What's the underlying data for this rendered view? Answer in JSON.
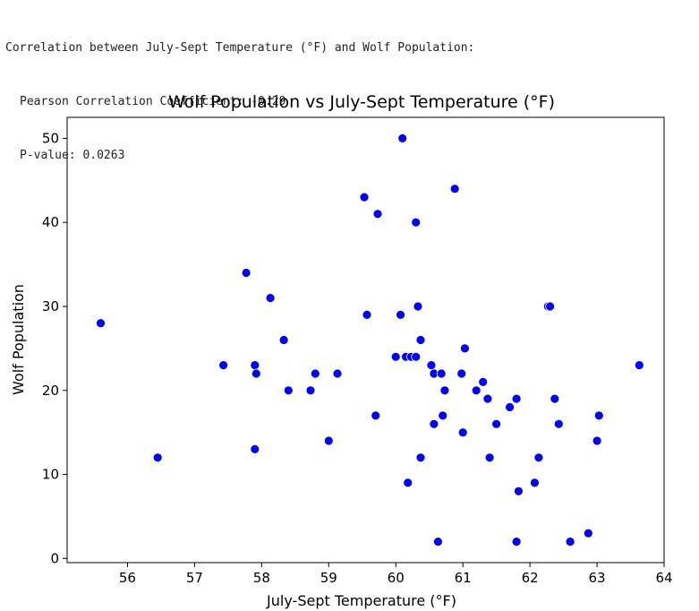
{
  "output": {
    "heading": "Correlation between July-Sept Temperature (°F) and Wolf Population:",
    "pearson": "Pearson Correlation Coefficient: -0.29",
    "pvalue": "P-value: 0.0263"
  },
  "colors": {
    "point": "#0000ff",
    "point_edge": "#ffffff",
    "axis": "#000000"
  },
  "chart_data": {
    "type": "scatter",
    "title": "Wolf Population vs July-Sept Temperature (°F)",
    "xlabel": "July-Sept Temperature (°F)",
    "ylabel": "Wolf Population",
    "xlim": [
      55.1,
      64.0
    ],
    "ylim": [
      -0.5,
      52.5
    ],
    "xticks": [
      56,
      57,
      58,
      59,
      60,
      61,
      62,
      63,
      64
    ],
    "yticks": [
      0,
      10,
      20,
      30,
      40,
      50
    ],
    "grid": false,
    "points": [
      {
        "x": 55.6,
        "y": 28
      },
      {
        "x": 56.45,
        "y": 12
      },
      {
        "x": 57.43,
        "y": 23
      },
      {
        "x": 57.77,
        "y": 34
      },
      {
        "x": 57.9,
        "y": 23
      },
      {
        "x": 57.92,
        "y": 22
      },
      {
        "x": 57.9,
        "y": 13
      },
      {
        "x": 58.13,
        "y": 31
      },
      {
        "x": 58.33,
        "y": 26
      },
      {
        "x": 58.4,
        "y": 20
      },
      {
        "x": 58.73,
        "y": 20
      },
      {
        "x": 58.8,
        "y": 22
      },
      {
        "x": 59.0,
        "y": 14
      },
      {
        "x": 59.13,
        "y": 22
      },
      {
        "x": 59.53,
        "y": 43
      },
      {
        "x": 59.57,
        "y": 29
      },
      {
        "x": 59.73,
        "y": 41
      },
      {
        "x": 59.7,
        "y": 17
      },
      {
        "x": 60.0,
        "y": 24
      },
      {
        "x": 60.07,
        "y": 29
      },
      {
        "x": 60.1,
        "y": 50
      },
      {
        "x": 60.15,
        "y": 24
      },
      {
        "x": 60.18,
        "y": 9
      },
      {
        "x": 60.23,
        "y": 24
      },
      {
        "x": 60.3,
        "y": 24
      },
      {
        "x": 60.3,
        "y": 40
      },
      {
        "x": 60.33,
        "y": 30
      },
      {
        "x": 60.37,
        "y": 26
      },
      {
        "x": 60.37,
        "y": 12
      },
      {
        "x": 60.53,
        "y": 23
      },
      {
        "x": 60.57,
        "y": 22
      },
      {
        "x": 60.57,
        "y": 16
      },
      {
        "x": 60.63,
        "y": 2
      },
      {
        "x": 60.68,
        "y": 22
      },
      {
        "x": 60.7,
        "y": 17
      },
      {
        "x": 60.73,
        "y": 20
      },
      {
        "x": 60.88,
        "y": 44
      },
      {
        "x": 60.98,
        "y": 22
      },
      {
        "x": 61.0,
        "y": 15
      },
      {
        "x": 61.03,
        "y": 25
      },
      {
        "x": 61.2,
        "y": 20
      },
      {
        "x": 61.3,
        "y": 21
      },
      {
        "x": 61.37,
        "y": 19
      },
      {
        "x": 61.4,
        "y": 12
      },
      {
        "x": 61.5,
        "y": 16
      },
      {
        "x": 61.7,
        "y": 18
      },
      {
        "x": 61.8,
        "y": 19
      },
      {
        "x": 61.8,
        "y": 2
      },
      {
        "x": 61.83,
        "y": 8
      },
      {
        "x": 62.07,
        "y": 9
      },
      {
        "x": 62.13,
        "y": 12
      },
      {
        "x": 62.27,
        "y": 30
      },
      {
        "x": 62.3,
        "y": 30
      },
      {
        "x": 62.37,
        "y": 19
      },
      {
        "x": 62.43,
        "y": 16
      },
      {
        "x": 62.6,
        "y": 2
      },
      {
        "x": 62.87,
        "y": 3
      },
      {
        "x": 63.0,
        "y": 14
      },
      {
        "x": 63.03,
        "y": 17
      },
      {
        "x": 63.63,
        "y": 23
      }
    ]
  }
}
